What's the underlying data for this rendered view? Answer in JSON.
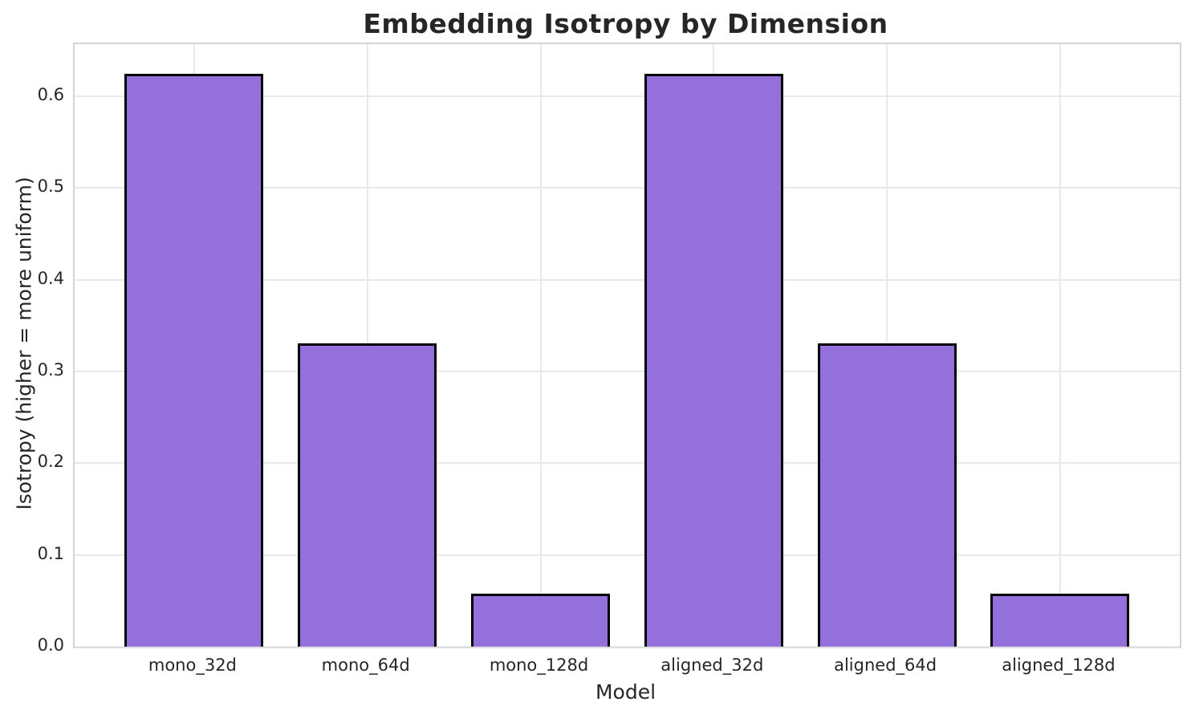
{
  "chart_data": {
    "type": "bar",
    "title": "Embedding Isotropy by Dimension",
    "xlabel": "Model",
    "ylabel": "Isotropy (higher = more uniform)",
    "categories": [
      "mono_32d",
      "mono_64d",
      "mono_128d",
      "aligned_32d",
      "aligned_64d",
      "aligned_128d"
    ],
    "values": [
      0.625,
      0.331,
      0.058,
      0.625,
      0.331,
      0.058
    ],
    "ylim": [
      0,
      0.657
    ],
    "yticks": [
      0.0,
      0.1,
      0.2,
      0.3,
      0.4,
      0.5,
      0.6
    ],
    "ytick_labels": [
      "0.0",
      "0.1",
      "0.2",
      "0.3",
      "0.4",
      "0.5",
      "0.6"
    ],
    "grid": true,
    "grid_axes": "both",
    "legend": false,
    "bar_color": "#9370DB",
    "bar_edge_color": "#000000",
    "grid_color": "#e9e9e9",
    "spine_color": "#d4d4d4",
    "text_color": "#262626"
  }
}
